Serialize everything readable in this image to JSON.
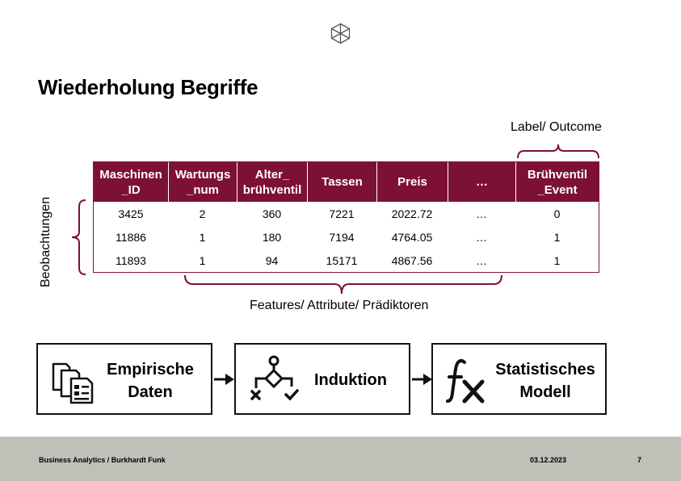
{
  "title": "Wiederholung Begriffe",
  "labels": {
    "outcome": "Label/ Outcome",
    "features": "Features/ Attribute/ Prädiktoren",
    "observations": "Beobachtungen"
  },
  "table": {
    "headers": [
      [
        "Maschinen",
        "_ID"
      ],
      [
        "Wartungs",
        "_num"
      ],
      [
        "Alter_",
        "brühventil"
      ],
      [
        "Tassen"
      ],
      [
        "Preis"
      ],
      [
        "…"
      ],
      [
        "Brühventil",
        "_Event"
      ]
    ],
    "rows": [
      [
        "3425",
        "2",
        "360",
        "7221",
        "2022.72",
        "…",
        "0"
      ],
      [
        "11886",
        "1",
        "180",
        "7194",
        "4764.05",
        "…",
        "1"
      ],
      [
        "11893",
        "1",
        "94",
        "15171",
        "4867.56",
        "…",
        "1"
      ]
    ]
  },
  "flow": {
    "box1": {
      "line1": "Empirische",
      "line2": "Daten",
      "icon": "documents-icon"
    },
    "box2": {
      "line1": "Induktion",
      "icon": "decision-flow-icon"
    },
    "box3": {
      "line1": "Statistisches",
      "line2": "Modell",
      "icon": "function-fx-icon"
    }
  },
  "footer": {
    "left": "Business Analytics / Burkhardt Funk",
    "date": "03.12.2023",
    "page": "7"
  },
  "colors": {
    "header_bg": "#7d1035",
    "bracket": "#7d1035",
    "footer_bg": "#c0c0b8"
  }
}
